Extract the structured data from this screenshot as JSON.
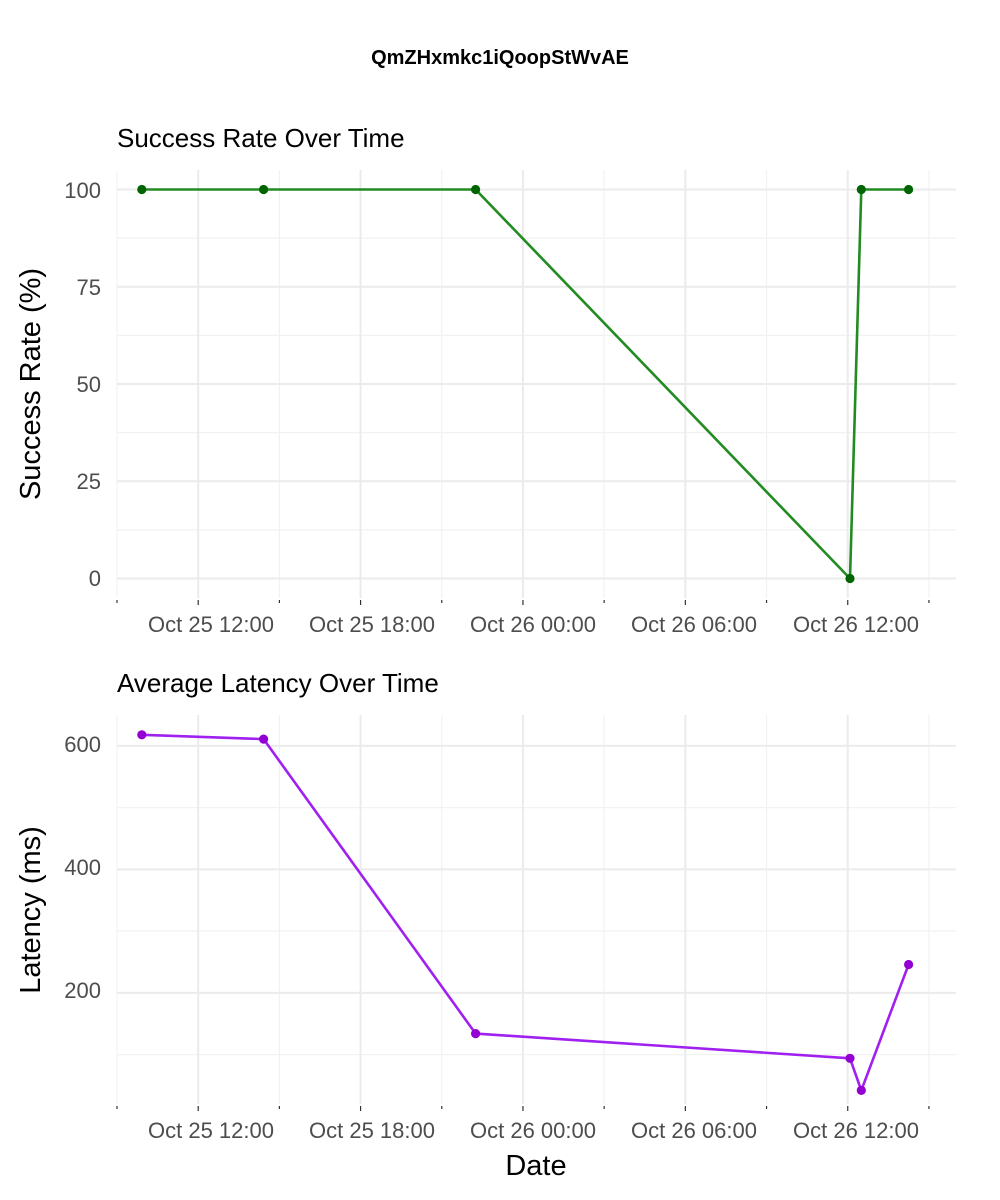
{
  "title": "QmZHxmkc1iQoopStWvAE",
  "chart_data": [
    {
      "type": "line",
      "title": "Success Rate Over Time",
      "xlabel": "",
      "ylabel": "Success Rate (%)",
      "color": "#228b22",
      "point_color": "#006400",
      "x_ticks": [
        "Oct 25 12:00",
        "Oct 25 18:00",
        "Oct 26 00:00",
        "Oct 26 06:00",
        "Oct 26 12:00"
      ],
      "y_ticks": [
        "0",
        "25",
        "50",
        "75",
        "100"
      ],
      "ylim": [
        0,
        100
      ],
      "grid": true,
      "x": [
        "2023-10-25 09:55",
        "2023-10-25 14:25",
        "2023-10-25 22:15",
        "2023-10-26 12:05",
        "2023-10-26 12:30",
        "2023-10-26 14:15"
      ],
      "values": [
        100,
        100,
        100,
        0,
        100,
        100
      ]
    },
    {
      "type": "line",
      "title": "Average Latency Over Time",
      "xlabel": "Date",
      "ylabel": "Latency (ms)",
      "color": "#a020f0",
      "point_color": "#9400d3",
      "x_ticks": [
        "Oct 25 12:00",
        "Oct 25 18:00",
        "Oct 26 00:00",
        "Oct 26 06:00",
        "Oct 26 12:00"
      ],
      "y_ticks": [
        "200",
        "400",
        "600"
      ],
      "ylim": [
        40,
        620
      ],
      "grid": true,
      "x": [
        "2023-10-25 09:55",
        "2023-10-25 14:25",
        "2023-10-25 22:15",
        "2023-10-26 12:05",
        "2023-10-26 12:30",
        "2023-10-26 14:15"
      ],
      "values": [
        618,
        611,
        134,
        94,
        42,
        246
      ]
    }
  ]
}
